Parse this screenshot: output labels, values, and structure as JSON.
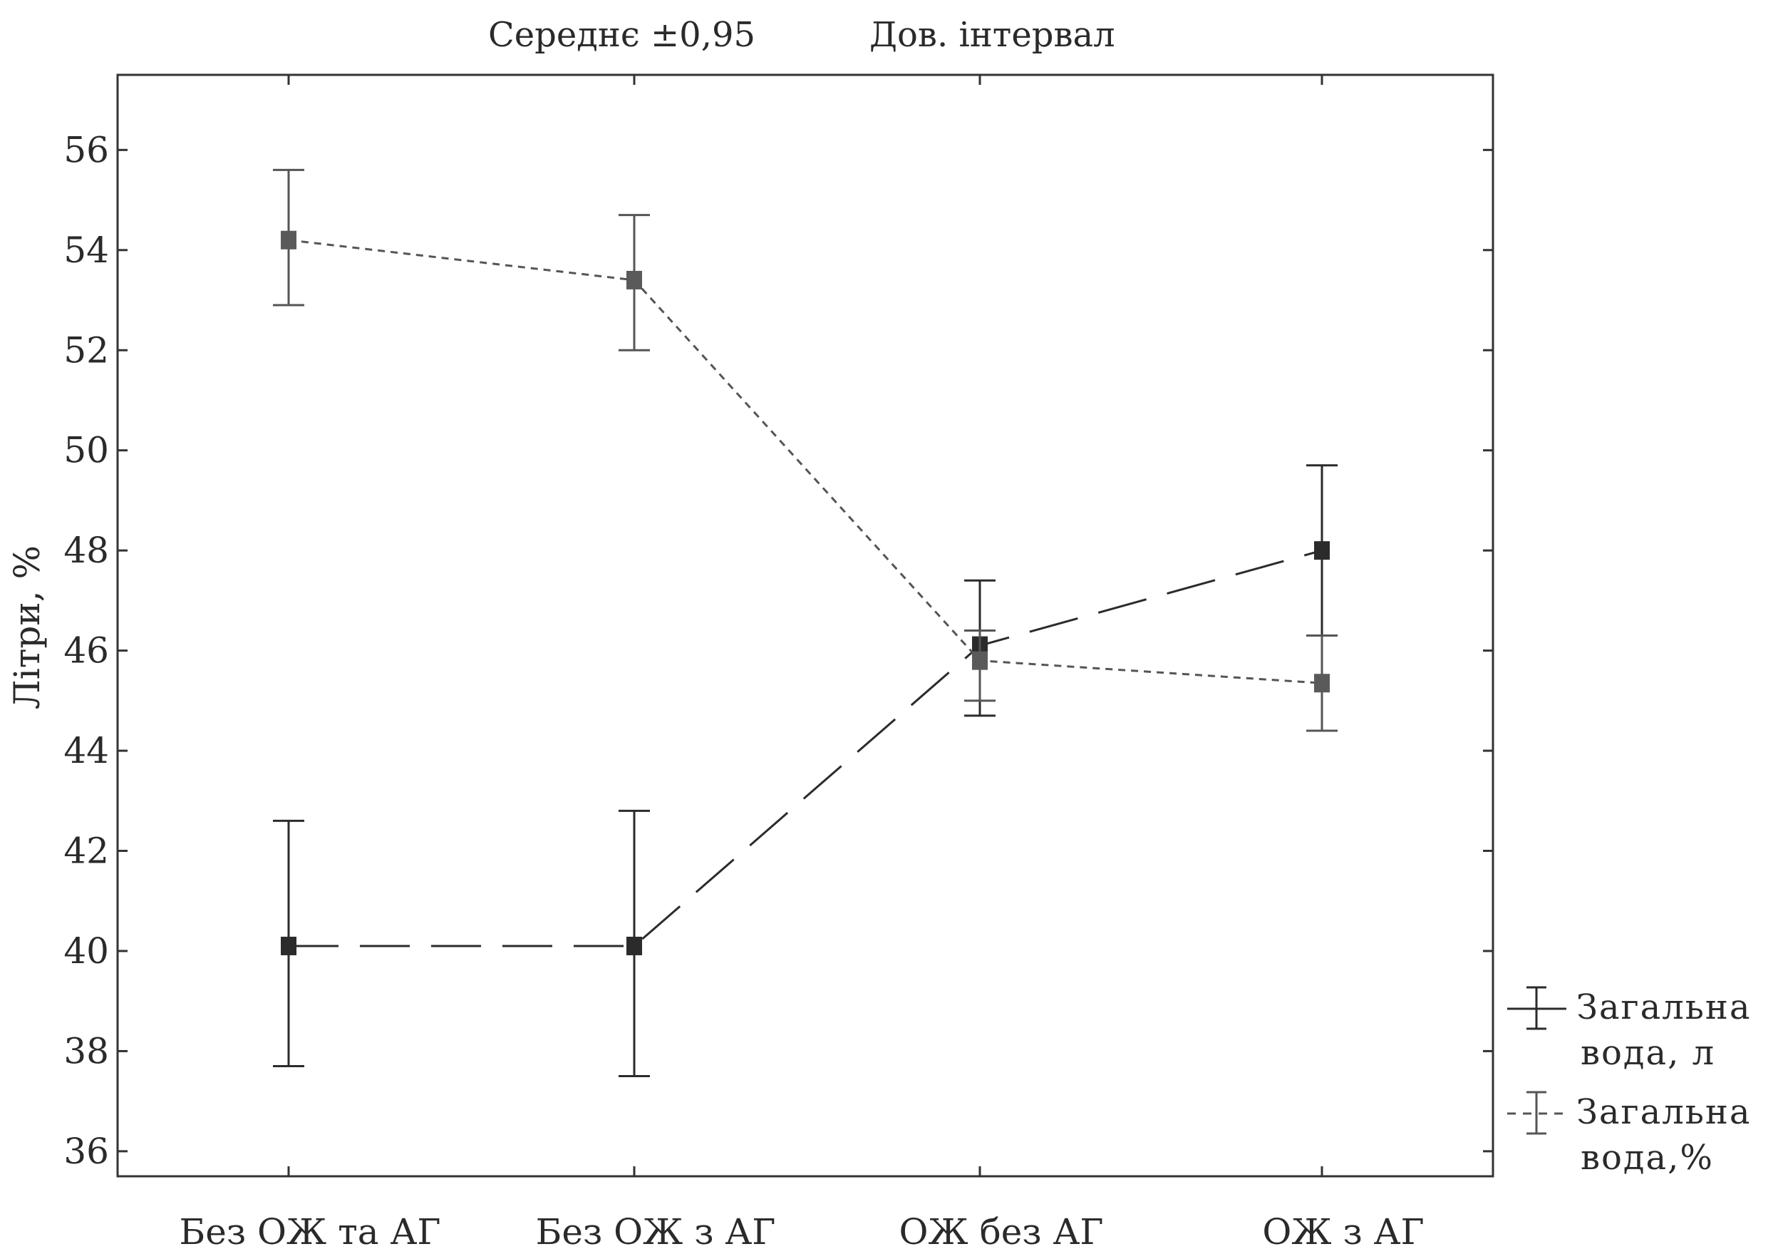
{
  "chart_data": {
    "type": "line",
    "title_left": "Середнє ±0,95",
    "title_right": "Дов. інтервал",
    "ylabel": "Літри, %",
    "xlabel": "",
    "ylim": [
      35.5,
      57.5
    ],
    "yticks": [
      36,
      38,
      40,
      42,
      44,
      46,
      48,
      50,
      52,
      54,
      56
    ],
    "categories": [
      "Без ОЖ та АГ",
      "Без ОЖ з АГ",
      "ОЖ без АГ",
      "ОЖ з АГ"
    ],
    "series": [
      {
        "name": "Загальна вода, л",
        "legend_line1": "Загальна",
        "legend_line2": "вода, л",
        "line_style": "long-dash",
        "values": [
          40.1,
          40.1,
          46.1,
          48.0
        ],
        "ci_low": [
          37.7,
          37.5,
          44.7,
          46.3
        ],
        "ci_high": [
          42.6,
          42.8,
          47.4,
          49.7
        ]
      },
      {
        "name": "Загальна вода,%",
        "legend_line1": "Загальна",
        "legend_line2": "вода,%",
        "line_style": "short-dash",
        "values": [
          54.2,
          53.4,
          45.8,
          45.35
        ],
        "ci_low": [
          52.9,
          52.0,
          45.0,
          44.4
        ],
        "ci_high": [
          55.6,
          54.7,
          46.4,
          46.3
        ]
      }
    ],
    "grid": false,
    "legend_position": "right",
    "colors": {
      "series1": "#2b2b2b",
      "series2": "#555555",
      "axis": "#333333"
    }
  }
}
